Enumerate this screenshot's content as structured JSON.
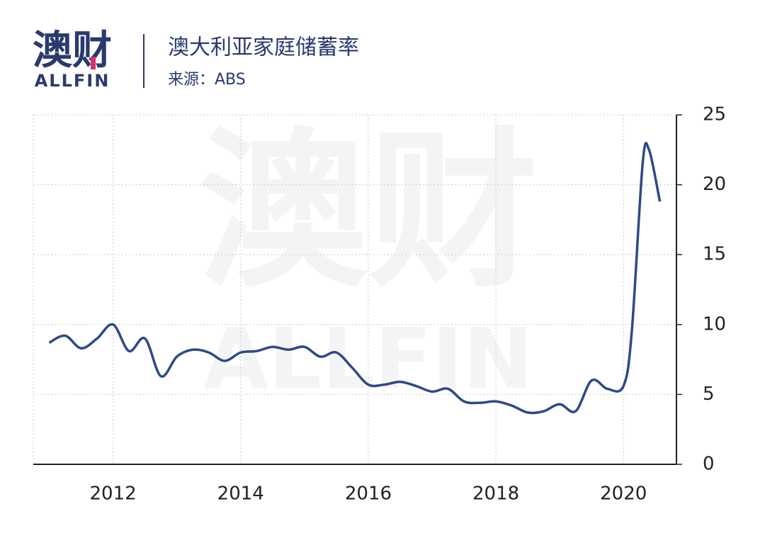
{
  "logo": {
    "mark": "澳财",
    "name": "ALLFIN"
  },
  "chart_data": {
    "type": "line",
    "title": "澳大利亚家庭储蓄率",
    "subtitle": "来源：ABS",
    "x": [
      2011.0,
      2011.25,
      2011.5,
      2011.75,
      2012.0,
      2012.25,
      2012.5,
      2012.75,
      2013.0,
      2013.25,
      2013.5,
      2013.75,
      2014.0,
      2014.25,
      2014.5,
      2014.75,
      2015.0,
      2015.25,
      2015.5,
      2015.75,
      2016.0,
      2016.25,
      2016.5,
      2016.75,
      2017.0,
      2017.25,
      2017.5,
      2017.75,
      2018.0,
      2018.25,
      2018.5,
      2018.75,
      2019.0,
      2019.25,
      2019.5,
      2019.75,
      2020.0,
      2020.13,
      2020.3,
      2020.4,
      2020.57
    ],
    "values": [
      8.7,
      9.2,
      8.3,
      9.0,
      10.0,
      8.1,
      9.0,
      6.3,
      7.7,
      8.2,
      8.0,
      7.4,
      8.0,
      8.1,
      8.4,
      8.2,
      8.4,
      7.7,
      8.0,
      6.9,
      5.7,
      5.7,
      5.9,
      5.6,
      5.2,
      5.4,
      4.5,
      4.4,
      4.5,
      4.2,
      3.7,
      3.8,
      4.3,
      3.8,
      6.0,
      5.4,
      5.6,
      9.5,
      21.5,
      22.5,
      18.8
    ],
    "color": "#2e4a85",
    "xlim": [
      2010.75,
      2020.83
    ],
    "xticks": [
      2012,
      2014,
      2016,
      2018,
      2020
    ],
    "ylim": [
      0,
      25
    ],
    "yticks": [
      0,
      5,
      10,
      15,
      20,
      25
    ],
    "grid": true
  }
}
